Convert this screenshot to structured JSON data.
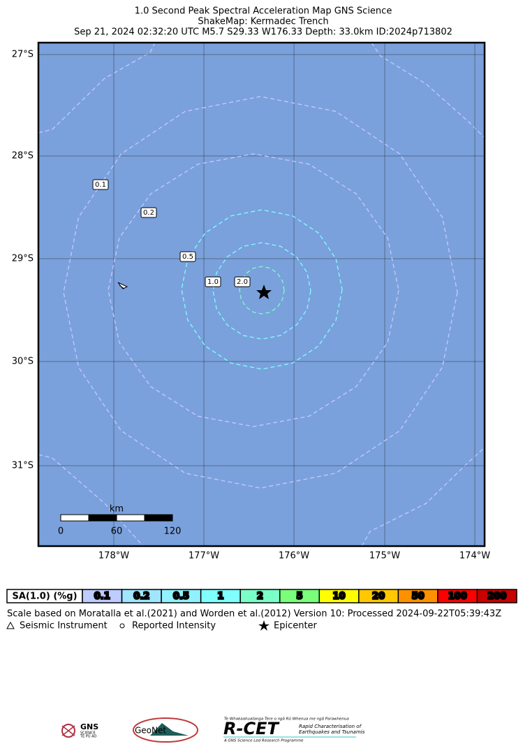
{
  "header": {
    "lines": [
      "1.0 Second Peak Spectral Acceleration Map GNS Science",
      "ShakeMap: Kermadec Trench",
      "Sep 21, 2024 02:32:20 UTC M5.7 S29.33 W176.33 Depth: 33.0km ID:2024p713802"
    ]
  },
  "map": {
    "lat_labels": [
      "27°S",
      "28°S",
      "29°S",
      "30°S",
      "31°S"
    ],
    "lon_labels": [
      "178°W",
      "177°W",
      "176°W",
      "175°W",
      "174°W"
    ],
    "contour_labels": [
      "0.1",
      "0.2",
      "0.5",
      "1.0",
      "2.0"
    ],
    "scale_bar": {
      "unit": "km",
      "ticks": [
        "0",
        "60",
        "120"
      ]
    }
  },
  "legend": {
    "label": "SA(1.0) (%g)",
    "bins": [
      {
        "label": "0.1",
        "color": "#bfccff"
      },
      {
        "label": "0.2",
        "color": "#a0e6ff"
      },
      {
        "label": "0.5",
        "color": "#90f2ff"
      },
      {
        "label": "1",
        "color": "#80ffff"
      },
      {
        "label": "2",
        "color": "#7affc8"
      },
      {
        "label": "5",
        "color": "#7aff7a"
      },
      {
        "label": "10",
        "color": "#ffff00"
      },
      {
        "label": "20",
        "color": "#ffc800"
      },
      {
        "label": "50",
        "color": "#ff9100"
      },
      {
        "label": "100",
        "color": "#ff0000"
      },
      {
        "label": "200",
        "color": "#c80000"
      }
    ]
  },
  "footnote": "Scale based on Moratalla et al.(2021) and Worden et al.(2012) Version 10: Processed 2024-09-22T05:39:43Z",
  "symbols": [
    "Seismic Instrument",
    "Reported Intensity",
    "Epicenter"
  ],
  "logos": {
    "gns": [
      "GNS",
      "SCIENCE",
      "TE PŪ AO"
    ],
    "geonet": "GeoNet",
    "rcet": [
      "Te Whakaahuatanga Tere o ngā Rū Whenua me ngā Parawhenua",
      "R-CET",
      "Rapid Characterisation of",
      "Earthquakes and Tsunamis",
      "A GNS Science Led Research Programme"
    ]
  }
}
